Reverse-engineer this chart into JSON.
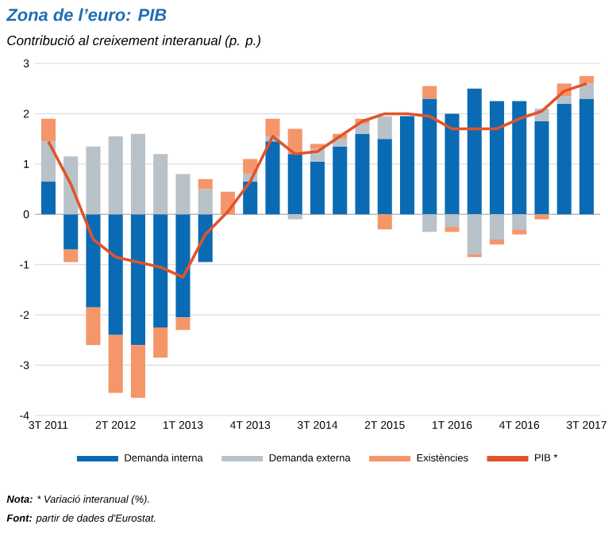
{
  "chart_data": {
    "type": "bar",
    "stacked": true,
    "title": "Zona de l’euro: PIB",
    "subtitle": "Contribució al creixement interanual (p. p.)",
    "categories": [
      "3T 2011",
      null,
      null,
      "2T 2012",
      null,
      null,
      "1T 2013",
      null,
      null,
      "4T 2013",
      null,
      null,
      "3T 2014",
      null,
      null,
      "2T 2015",
      null,
      null,
      "1T 2016",
      null,
      null,
      "4T 2016",
      null,
      null,
      "3T 2017"
    ],
    "series": [
      {
        "name": "Demanda interna",
        "color": "#0a6bb4",
        "values": [
          0.65,
          -0.7,
          -1.85,
          -2.4,
          -2.6,
          -2.25,
          -2.05,
          -0.95,
          0,
          0.65,
          1.45,
          1.2,
          1.05,
          1.35,
          1.6,
          1.5,
          1.95,
          2.3,
          2.0,
          2.5,
          2.25,
          2.25,
          1.85,
          2.2,
          2.3
        ]
      },
      {
        "name": "Demanda externa",
        "color": "#b8c2c8",
        "values": [
          0.8,
          1.15,
          1.35,
          1.55,
          1.6,
          1.2,
          0.8,
          0.5,
          0,
          0.15,
          0.1,
          -0.1,
          0.25,
          0.15,
          0.2,
          0.45,
          null,
          -0.35,
          -0.25,
          -0.8,
          -0.5,
          -0.3,
          0.25,
          0.15,
          0.3
        ]
      },
      {
        "name": "Existències",
        "color": "#f4966a",
        "values": [
          0.45,
          -0.25,
          -0.75,
          -1.15,
          -1.05,
          -0.6,
          -0.25,
          0.2,
          0.45,
          0.3,
          0.35,
          0.5,
          0.1,
          0.1,
          0.1,
          -0.3,
          0,
          0.25,
          -0.1,
          -0.05,
          -0.1,
          -0.1,
          -0.1,
          0.25,
          0.15
        ]
      },
      {
        "name": "PIB *",
        "type": "line",
        "color": "#e0542a",
        "values": [
          1.45,
          0.6,
          -0.5,
          -0.85,
          -0.95,
          -1.05,
          -1.25,
          -0.4,
          0.05,
          0.65,
          1.55,
          1.2,
          1.25,
          1.55,
          1.85,
          2.0,
          2.0,
          1.95,
          1.7,
          1.7,
          1.7,
          1.9,
          2.05,
          2.45,
          2.6
        ]
      }
    ],
    "ylim": [
      -4,
      3
    ],
    "yticks": [
      -4,
      -3,
      -2,
      -1,
      0,
      1,
      2,
      3
    ],
    "grid": "y",
    "legend": "bottom",
    "annotations": [
      "**Nota:** * Variació interanual (%).",
      "**Font:** partir de dades d'Eurostat."
    ]
  }
}
